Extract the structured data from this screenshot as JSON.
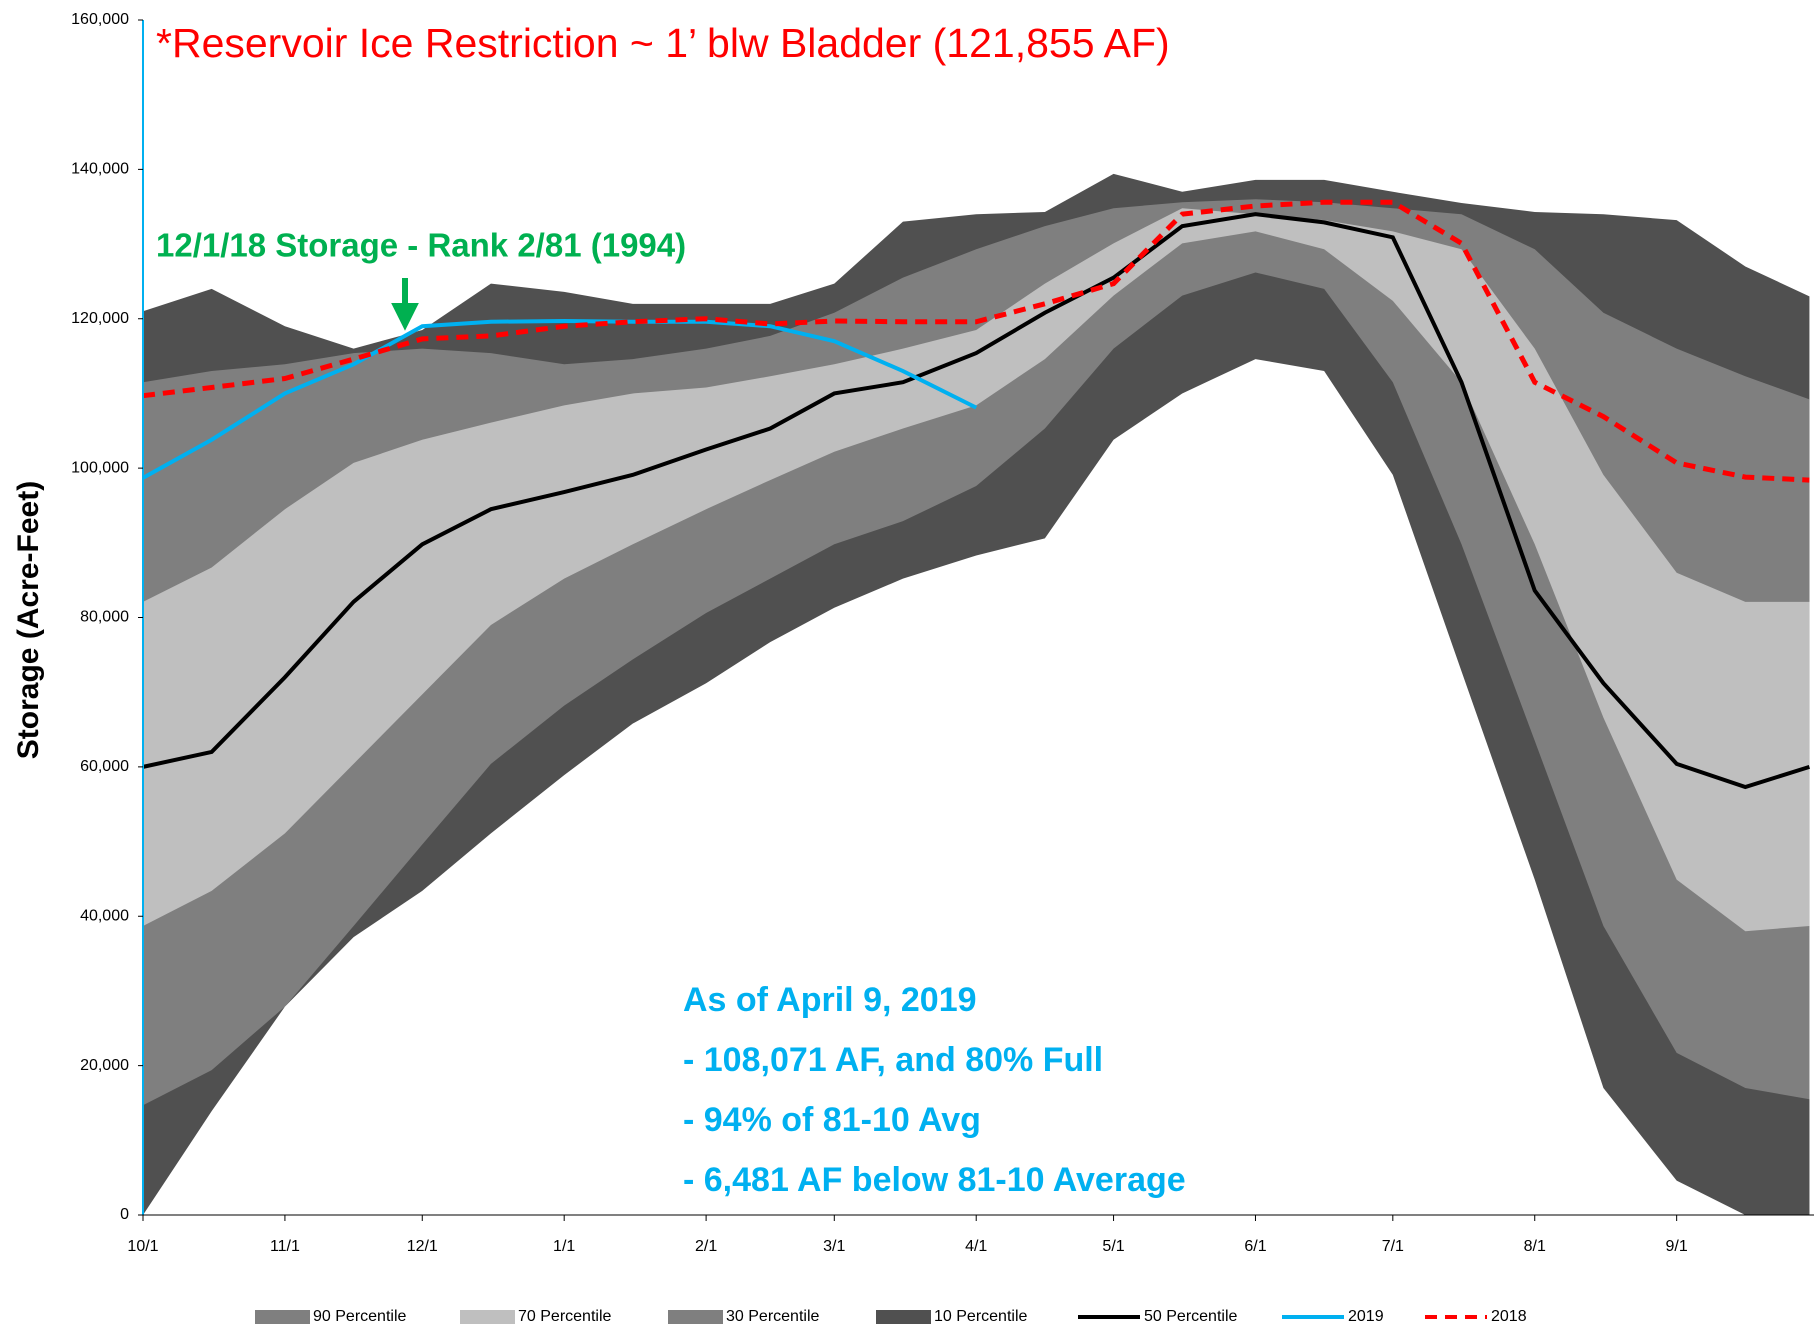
{
  "chart_data": {
    "type": "area",
    "title": "*Reservoir Ice Restriction ~ 1’ blw Bladder (121,855 AF)",
    "ylabel": "Storage (Acre-Feet)",
    "annotations": [
      "12/1/18 Storage - Rank 2/81 (1994)",
      "As of April 9, 2019",
      "- 108,071 AF, and 80% Full",
      "- 94% of 81-10 Avg",
      "- 6,481 AF below 81-10 Average"
    ],
    "x": [
      0,
      15,
      31,
      46,
      61,
      76,
      92,
      107,
      123,
      137,
      151,
      166,
      182,
      197,
      212,
      227,
      243,
      258,
      273,
      288,
      304,
      319,
      335,
      350,
      364
    ],
    "xlim": [
      0,
      365
    ],
    "xticks": [
      {
        "value": 0,
        "label": "10/1"
      },
      {
        "value": 31,
        "label": "11/1"
      },
      {
        "value": 61,
        "label": "12/1"
      },
      {
        "value": 92,
        "label": "1/1"
      },
      {
        "value": 123,
        "label": "2/1"
      },
      {
        "value": 151,
        "label": "3/1"
      },
      {
        "value": 182,
        "label": "4/1"
      },
      {
        "value": 212,
        "label": "5/1"
      },
      {
        "value": 243,
        "label": "6/1"
      },
      {
        "value": 273,
        "label": "7/1"
      },
      {
        "value": 304,
        "label": "8/1"
      },
      {
        "value": 335,
        "label": "9/1"
      }
    ],
    "ylim": [
      0,
      160000
    ],
    "yticks": [
      0,
      {
        "value": 20000,
        "label": "20,000"
      },
      {
        "value": 40000,
        "label": "40,000"
      },
      {
        "value": 60000,
        "label": "60,000"
      },
      {
        "value": 80000,
        "label": "80,000"
      },
      {
        "value": 100000,
        "label": "100,000"
      },
      {
        "value": 120000,
        "label": "120,000"
      },
      {
        "value": 140000,
        "label": "140,000"
      },
      {
        "value": 160000,
        "label": "160,000"
      }
    ],
    "series": [
      {
        "name": "90 Percentile",
        "kind": "area",
        "color": "#7f7f7f",
        "values": [
          111500,
          113000,
          113900,
          115400,
          116000,
          115400,
          113900,
          114600,
          116000,
          117700,
          120800,
          125500,
          129300,
          132400,
          134800,
          135600,
          136000,
          135600,
          134800,
          134000,
          129300,
          120800,
          116000,
          112300,
          109200
        ]
      },
      {
        "name": "70 Percentile",
        "kind": "area",
        "color": "#bfbfbf",
        "values": [
          82100,
          86700,
          94500,
          100700,
          103800,
          106100,
          108400,
          110000,
          110800,
          112300,
          113900,
          116000,
          118500,
          124700,
          130100,
          134800,
          134000,
          133200,
          131700,
          129300,
          116000,
          99100,
          86000,
          82100,
          82100
        ]
      },
      {
        "name": "30 Percentile",
        "kind": "area",
        "color": "#7f7f7f",
        "values": [
          38700,
          43400,
          51100,
          60400,
          69700,
          79000,
          85200,
          89800,
          94500,
          98400,
          102200,
          105300,
          108400,
          114600,
          123100,
          130100,
          131700,
          129300,
          122400,
          111500,
          89800,
          66600,
          44900,
          38000,
          38700
        ]
      },
      {
        "name": "10 Percentile",
        "kind": "area",
        "color": "#505050",
        "values": [
          14700,
          19400,
          27900,
          38700,
          49600,
          60400,
          68200,
          74400,
          80600,
          85200,
          89800,
          92900,
          97600,
          105300,
          116000,
          123100,
          126200,
          124000,
          111500,
          89800,
          63500,
          38700,
          21700,
          17000,
          15500
        ]
      },
      {
        "name": "50 Percentile",
        "kind": "line",
        "color": "#000000",
        "values": [
          60000,
          62000,
          72000,
          82100,
          89800,
          94500,
          96800,
          99100,
          102500,
          105300,
          110000,
          111500,
          115400,
          120800,
          125500,
          132400,
          134000,
          132900,
          130900,
          111500,
          83600,
          71200,
          60400,
          57300,
          60000
        ]
      },
      {
        "name": "2019",
        "kind": "line",
        "color": "#00b0f0",
        "values": [
          98700,
          103800,
          110000,
          113900,
          119000,
          119600,
          119700,
          119600,
          119600,
          119000,
          117000,
          113000,
          108100,
          null,
          null,
          null,
          null,
          null,
          null,
          null,
          null,
          null,
          null,
          null,
          null
        ]
      },
      {
        "name": "2018",
        "kind": "line",
        "dashed": true,
        "color": "#ff0000",
        "values": [
          109700,
          110800,
          112000,
          114600,
          117300,
          117700,
          119000,
          119600,
          120000,
          119300,
          119700,
          119600,
          119600,
          122000,
          124700,
          134000,
          135100,
          135600,
          135600,
          130100,
          111500,
          106900,
          100700,
          98800,
          98400
        ]
      },
      {
        "kind": "area",
        "color": "#505050",
        "values": [
          121000,
          124000,
          119000,
          116000,
          118500,
          124700,
          123600,
          122000,
          122000,
          122000,
          124700,
          133000,
          134000,
          134300,
          139400,
          137000,
          138600,
          138600,
          137000,
          135500,
          134300,
          134000,
          133200,
          127000,
          123000
        ]
      },
      {
        "kind": "area",
        "color": "#ffffff",
        "values": [
          0,
          13900,
          27900,
          37200,
          43400,
          51100,
          58900,
          65800,
          71200,
          76700,
          81300,
          85200,
          88300,
          90600,
          103800,
          110000,
          114600,
          113000,
          99100,
          72800,
          44900,
          17000,
          4600,
          0,
          0
        ]
      }
    ]
  }
}
